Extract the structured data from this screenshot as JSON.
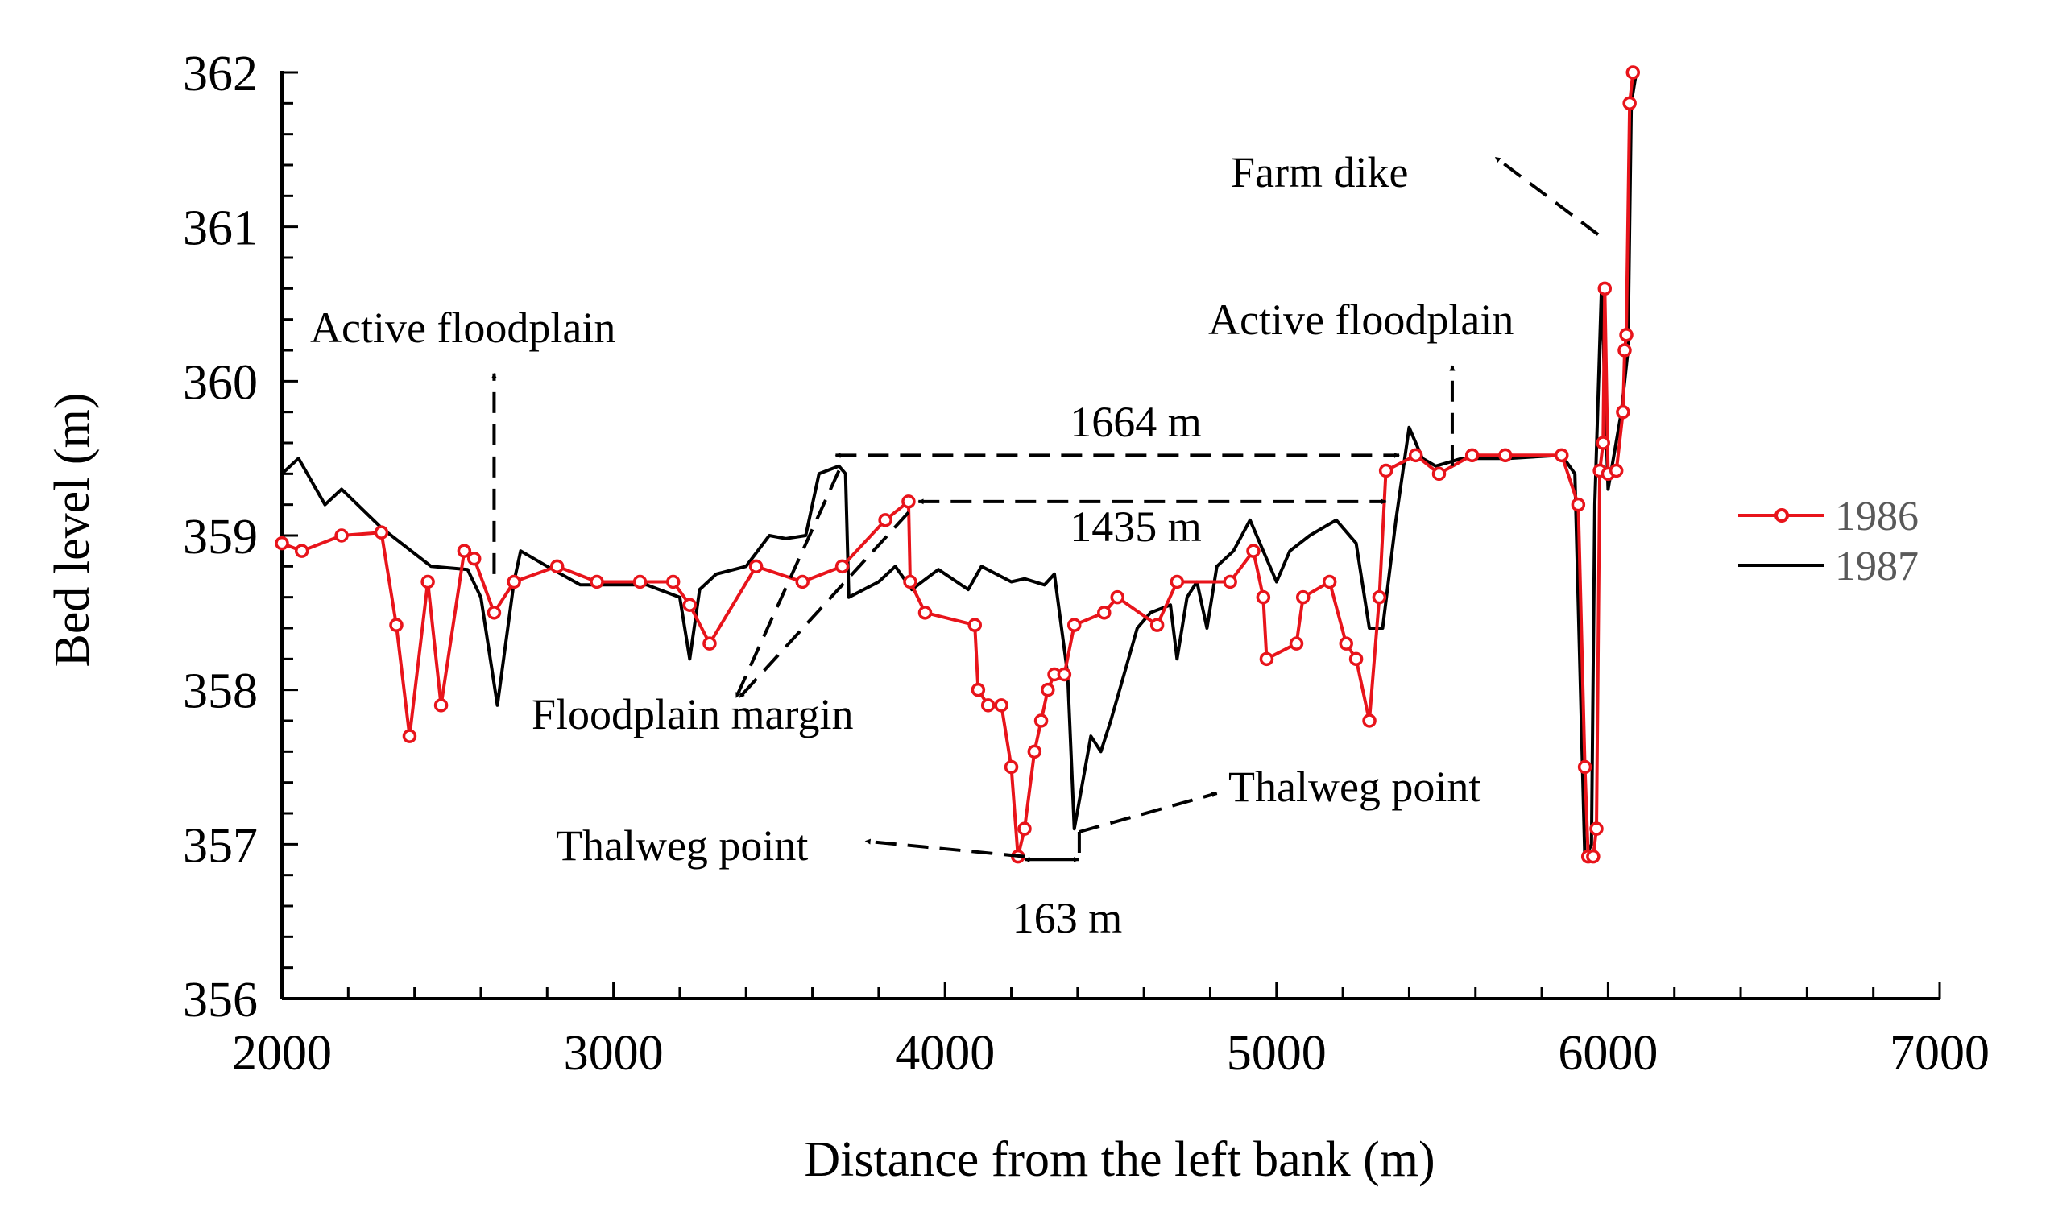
{
  "chart_data": {
    "type": "line",
    "xlabel": "Distance from the left bank (m)",
    "ylabel": "Bed level (m)",
    "xlim": [
      2000,
      7000
    ],
    "ylim": [
      356,
      362
    ],
    "x_ticks": [
      2000,
      3000,
      4000,
      5000,
      6000,
      7000
    ],
    "y_ticks": [
      356,
      357,
      358,
      359,
      360,
      361,
      362
    ],
    "legend_position": "right",
    "series": [
      {
        "name": "1986",
        "color": "#e8141b",
        "marker": "open-circle",
        "points": [
          [
            2000,
            358.95
          ],
          [
            2060,
            358.9
          ],
          [
            2180,
            359.0
          ],
          [
            2300,
            359.02
          ],
          [
            2345,
            358.42
          ],
          [
            2385,
            357.7
          ],
          [
            2440,
            358.7
          ],
          [
            2480,
            357.9
          ],
          [
            2550,
            358.9
          ],
          [
            2580,
            358.85
          ],
          [
            2640,
            358.5
          ],
          [
            2700,
            358.7
          ],
          [
            2830,
            358.8
          ],
          [
            2950,
            358.7
          ],
          [
            3080,
            358.7
          ],
          [
            3180,
            358.7
          ],
          [
            3230,
            358.55
          ],
          [
            3290,
            358.3
          ],
          [
            3430,
            358.8
          ],
          [
            3570,
            358.7
          ],
          [
            3690,
            358.8
          ],
          [
            3820,
            359.1
          ],
          [
            3890,
            359.22
          ],
          [
            3895,
            358.7
          ],
          [
            3940,
            358.5
          ],
          [
            4090,
            358.42
          ],
          [
            4100,
            358.0
          ],
          [
            4130,
            357.9
          ],
          [
            4170,
            357.9
          ],
          [
            4200,
            357.5
          ],
          [
            4220,
            356.92
          ],
          [
            4240,
            357.1
          ],
          [
            4270,
            357.6
          ],
          [
            4290,
            357.8
          ],
          [
            4310,
            358.0
          ],
          [
            4330,
            358.1
          ],
          [
            4360,
            358.1
          ],
          [
            4390,
            358.42
          ],
          [
            4480,
            358.5
          ],
          [
            4520,
            358.6
          ],
          [
            4640,
            358.42
          ],
          [
            4700,
            358.7
          ],
          [
            4860,
            358.7
          ],
          [
            4930,
            358.9
          ],
          [
            4960,
            358.6
          ],
          [
            4970,
            358.2
          ],
          [
            5060,
            358.3
          ],
          [
            5080,
            358.6
          ],
          [
            5160,
            358.7
          ],
          [
            5210,
            358.3
          ],
          [
            5240,
            358.2
          ],
          [
            5280,
            357.8
          ],
          [
            5310,
            358.6
          ],
          [
            5330,
            359.42
          ],
          [
            5420,
            359.52
          ],
          [
            5490,
            359.4
          ],
          [
            5590,
            359.52
          ],
          [
            5690,
            359.52
          ],
          [
            5860,
            359.52
          ],
          [
            5910,
            359.2
          ],
          [
            5930,
            357.5
          ],
          [
            5940,
            356.92
          ],
          [
            5955,
            356.92
          ],
          [
            5965,
            357.1
          ],
          [
            5975,
            359.42
          ],
          [
            5985,
            359.6
          ],
          [
            5990,
            360.6
          ],
          [
            6000,
            359.4
          ],
          [
            6025,
            359.42
          ],
          [
            6045,
            359.8
          ],
          [
            6050,
            360.2
          ],
          [
            6055,
            360.3
          ],
          [
            6065,
            361.8
          ],
          [
            6075,
            362.0
          ]
        ]
      },
      {
        "name": "1987",
        "color": "#000000",
        "marker": "none",
        "points": [
          [
            2000,
            359.4
          ],
          [
            2050,
            359.5
          ],
          [
            2130,
            359.2
          ],
          [
            2180,
            359.3
          ],
          [
            2300,
            359.05
          ],
          [
            2450,
            358.8
          ],
          [
            2560,
            358.78
          ],
          [
            2600,
            358.6
          ],
          [
            2650,
            357.9
          ],
          [
            2700,
            358.7
          ],
          [
            2720,
            358.9
          ],
          [
            2800,
            358.8
          ],
          [
            2900,
            358.68
          ],
          [
            3100,
            358.68
          ],
          [
            3200,
            358.6
          ],
          [
            3230,
            358.2
          ],
          [
            3260,
            358.65
          ],
          [
            3310,
            358.75
          ],
          [
            3400,
            358.8
          ],
          [
            3470,
            359.0
          ],
          [
            3520,
            358.98
          ],
          [
            3580,
            359.0
          ],
          [
            3620,
            359.4
          ],
          [
            3680,
            359.45
          ],
          [
            3700,
            359.4
          ],
          [
            3710,
            358.6
          ],
          [
            3800,
            358.7
          ],
          [
            3850,
            358.8
          ],
          [
            3900,
            358.65
          ],
          [
            3980,
            358.78
          ],
          [
            4070,
            358.65
          ],
          [
            4110,
            358.8
          ],
          [
            4200,
            358.7
          ],
          [
            4240,
            358.72
          ],
          [
            4300,
            358.68
          ],
          [
            4330,
            358.75
          ],
          [
            4370,
            358.1
          ],
          [
            4390,
            357.1
          ],
          [
            4440,
            357.7
          ],
          [
            4470,
            357.6
          ],
          [
            4500,
            357.8
          ],
          [
            4540,
            358.1
          ],
          [
            4580,
            358.4
          ],
          [
            4620,
            358.5
          ],
          [
            4680,
            358.55
          ],
          [
            4700,
            358.2
          ],
          [
            4730,
            358.6
          ],
          [
            4760,
            358.7
          ],
          [
            4790,
            358.4
          ],
          [
            4820,
            358.8
          ],
          [
            4870,
            358.9
          ],
          [
            4920,
            359.1
          ],
          [
            4960,
            358.9
          ],
          [
            5000,
            358.7
          ],
          [
            5040,
            358.9
          ],
          [
            5100,
            359.0
          ],
          [
            5180,
            359.1
          ],
          [
            5240,
            358.95
          ],
          [
            5280,
            358.4
          ],
          [
            5320,
            358.4
          ],
          [
            5360,
            359.1
          ],
          [
            5400,
            359.7
          ],
          [
            5440,
            359.5
          ],
          [
            5480,
            359.45
          ],
          [
            5560,
            359.5
          ],
          [
            5700,
            359.5
          ],
          [
            5860,
            359.52
          ],
          [
            5900,
            359.4
          ],
          [
            5930,
            356.9
          ],
          [
            5950,
            357.0
          ],
          [
            5960,
            359.2
          ],
          [
            5980,
            360.6
          ],
          [
            6000,
            359.3
          ],
          [
            6040,
            359.8
          ],
          [
            6060,
            360.2
          ],
          [
            6070,
            361.8
          ],
          [
            6085,
            362.0
          ]
        ]
      }
    ],
    "annotations": [
      {
        "text": "Active floodplain"
      },
      {
        "text": "Active floodplain"
      },
      {
        "text": "Farm dike"
      },
      {
        "text": "1664 m"
      },
      {
        "text": "1435 m"
      },
      {
        "text": "Floodplain margin"
      },
      {
        "text": "Thalweg point"
      },
      {
        "text": "Thalweg point"
      },
      {
        "text": "163 m"
      }
    ]
  }
}
